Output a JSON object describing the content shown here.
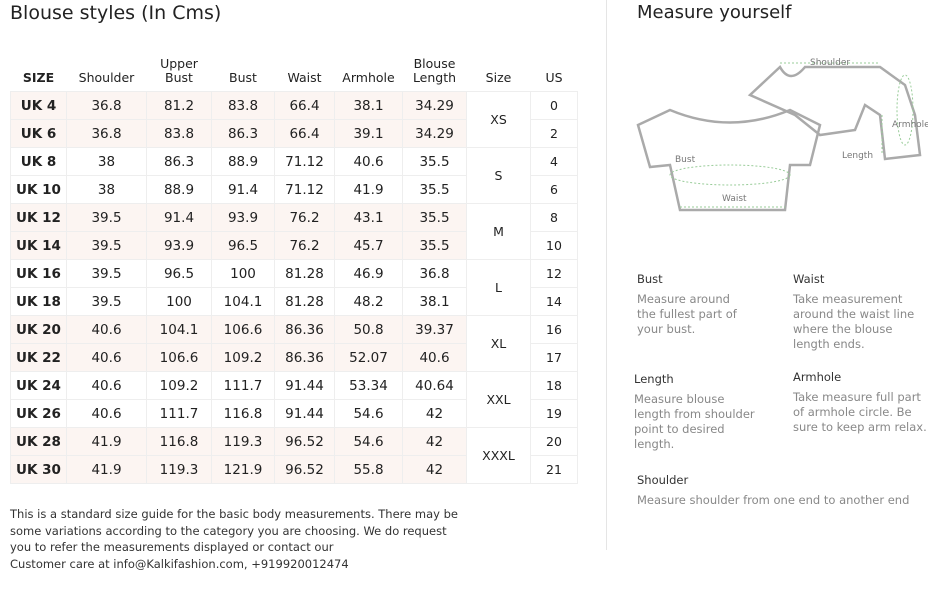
{
  "title": "Blouse styles (In Cms)",
  "table": {
    "headers": [
      "SIZE",
      "Shoulder",
      "Upper Bust",
      "Bust",
      "Waist",
      "Armhole",
      "Blouse Length",
      "Size",
      "US"
    ],
    "rows": [
      [
        "UK 4",
        "36.8",
        "81.2",
        "83.8",
        "66.4",
        "38.1",
        "34.29"
      ],
      [
        "UK 6",
        "36.8",
        "83.8",
        "86.3",
        "66.4",
        "39.1",
        "34.29"
      ],
      [
        "UK 8",
        "38",
        "86.3",
        "88.9",
        "71.12",
        "40.6",
        "35.5"
      ],
      [
        "UK 10",
        "38",
        "88.9",
        "91.4",
        "71.12",
        "41.9",
        "35.5"
      ],
      [
        "UK 12",
        "39.5",
        "91.4",
        "93.9",
        "76.2",
        "43.1",
        "35.5"
      ],
      [
        "UK 14",
        "39.5",
        "93.9",
        "96.5",
        "76.2",
        "45.7",
        "35.5"
      ],
      [
        "UK 16",
        "39.5",
        "96.5",
        "100",
        "81.28",
        "46.9",
        "36.8"
      ],
      [
        "UK 18",
        "39.5",
        "100",
        "104.1",
        "81.28",
        "48.2",
        "38.1"
      ],
      [
        "UK 20",
        "40.6",
        "104.1",
        "106.6",
        "86.36",
        "50.8",
        "39.37"
      ],
      [
        "UK 22",
        "40.6",
        "106.6",
        "109.2",
        "86.36",
        "52.07",
        "40.6"
      ],
      [
        "UK 24",
        "40.6",
        "109.2",
        "111.7",
        "91.44",
        "53.34",
        "40.64"
      ],
      [
        "UK 26",
        "40.6",
        "111.7",
        "116.8",
        "91.44",
        "54.6",
        "42"
      ],
      [
        "UK 28",
        "41.9",
        "116.8",
        "119.3",
        "96.52",
        "54.6",
        "42"
      ],
      [
        "UK 30",
        "41.9",
        "119.3",
        "121.9",
        "96.52",
        "55.8",
        "42"
      ]
    ],
    "sizes": [
      "XS",
      "S",
      "M",
      "L",
      "XL",
      "XXL",
      "XXXL"
    ],
    "us": [
      "0",
      "2",
      "4",
      "6",
      "8",
      "10",
      "12",
      "14",
      "16",
      "17",
      "18",
      "19",
      "20",
      "21"
    ]
  },
  "note": [
    "This is a standard size guide for the basic body measurements. There may be",
    "some variations according to the category you are choosing. We do request",
    "you to refer the measurements displayed or contact our",
    "Customer care at info@Kalkifashion.com, +919920012474"
  ],
  "guide": {
    "title": "Measure yourself",
    "diagram": {
      "shoulder": "Shoulder",
      "armhole": "Armhole",
      "length": "Length",
      "bust": "Bust",
      "waist": "Waist"
    },
    "items": [
      {
        "heading": "Bust",
        "text": "Measure around the fullest part of your bust."
      },
      {
        "heading": "Waist",
        "text": "Take measurement around the waist line where the blouse length ends."
      },
      {
        "heading": "Length",
        "text": "Measure blouse length from shoulder point to desired length."
      },
      {
        "heading": "Armhole",
        "text": "Take measure full part of armhole circle. Be sure to keep arm relax."
      },
      {
        "heading": "Shoulder",
        "text": "Measure shoulder from one end to another end"
      }
    ]
  }
}
